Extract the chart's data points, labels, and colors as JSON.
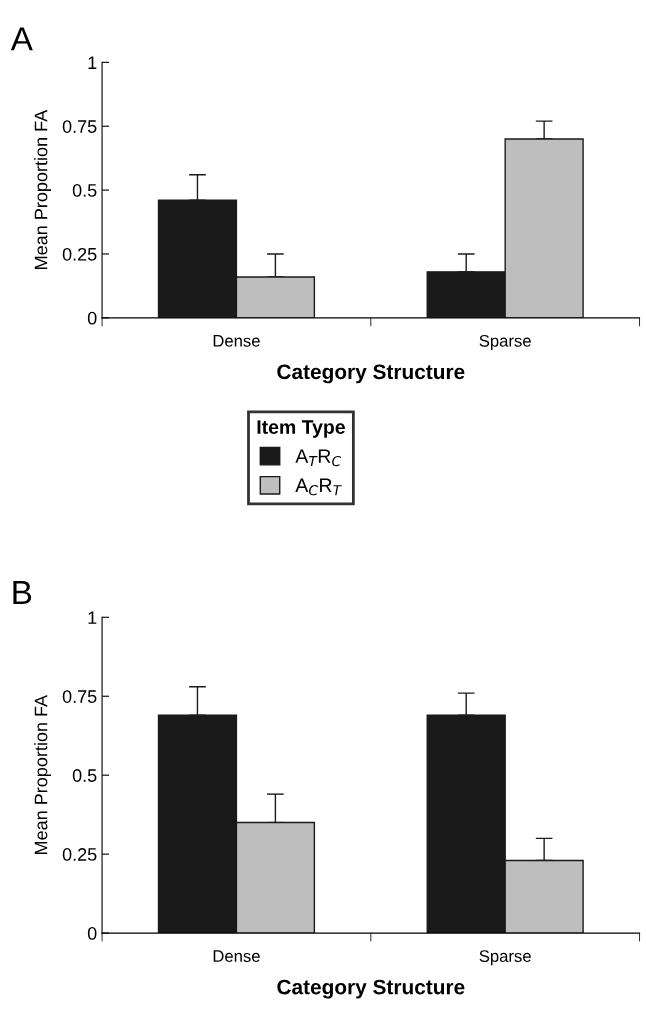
{
  "chart_data": [
    {
      "type": "bar",
      "title": "A",
      "xlabel": "Category Structure",
      "ylabel": "Mean Proportion FA",
      "categories": [
        "Dense",
        "Sparse"
      ],
      "series": [
        {
          "name": "A$_{T}$R$_{C}$",
          "color": "#1a1a1a",
          "values": [
            0.46,
            0.18
          ],
          "errors": [
            [
              0.46,
              0.56
            ],
            [
              0.18,
              0.25
            ]
          ]
        },
        {
          "name": "A$_{C}$R$_{T}$",
          "color": "#bebebe",
          "values": [
            0.16,
            0.7
          ],
          "errors": [
            [
              0.16,
              0.25
            ],
            [
              0.7,
              0.77
            ]
          ]
        }
      ],
      "ylim": [
        0,
        1
      ],
      "yticks": [
        0,
        0.25,
        0.5,
        0.75,
        1
      ],
      "grid": false,
      "legend": "bottom",
      "legend_title": "Item Type"
    },
    {
      "type": "bar",
      "title": "B",
      "xlabel": "Category Structure",
      "ylabel": "Mean Proportion FA",
      "categories": [
        "Dense",
        "Sparse"
      ],
      "series": [
        {
          "color": "#1a1a1a",
          "values": [
            0.69,
            0.69
          ],
          "errors": [
            [
              0.69,
              0.78
            ],
            [
              0.69,
              0.76
            ]
          ]
        },
        {
          "color": "#bebebe",
          "values": [
            0.35,
            0.23
          ],
          "errors": [
            [
              0.35,
              0.44
            ],
            [
              0.23,
              0.3
            ]
          ]
        }
      ],
      "ylim": [
        0,
        1
      ],
      "yticks": [
        0,
        0.25,
        0.5,
        0.75,
        1
      ],
      "grid": false
    }
  ]
}
